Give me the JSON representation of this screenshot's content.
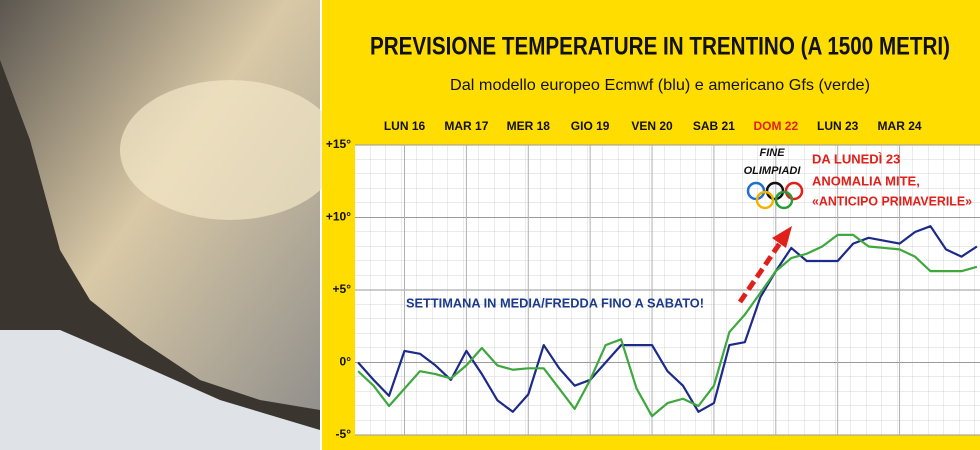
{
  "chart_data": {
    "type": "line",
    "title": "PREVISIONE TEMPERATURE IN TRENTINO (A 1500 METRI)",
    "subtitle": "Dal modello europeo Ecmwf (blu) e americano Gfs (verde)",
    "annotations": [
      "FINE",
      "OLIMPIADI",
      "DA LUNEDÌ 23",
      "ANOMALIA MITE,",
      "«ANTICIPO PRIMAVERILE»",
      "SETTIMANA IN MEDIA/FREDDA FINO A SABATO!"
    ],
    "x": [
      15.25,
      15.5,
      15.75,
      16,
      16.25,
      16.5,
      16.75,
      17,
      17.25,
      17.5,
      17.75,
      18,
      18.25,
      18.5,
      18.75,
      19,
      19.25,
      19.5,
      19.75,
      20,
      20.25,
      20.5,
      20.75,
      21,
      21.25,
      21.5,
      21.75,
      22,
      22.25,
      22.5,
      22.75,
      23,
      23.25,
      23.5,
      23.75,
      24,
      24.25,
      24.5,
      24.75,
      25,
      25.25
    ],
    "series": [
      {
        "color": "#1c2a8a",
        "values": [
          0,
          -1.2,
          -2.3,
          0.8,
          0.6,
          -0.2,
          -1.2,
          0.8,
          -0.8,
          -2.6,
          -3.4,
          -2.2,
          1.2,
          -0.4,
          -1.6,
          -1.2,
          0,
          1.2,
          1.2,
          1.2,
          -0.6,
          -1.6,
          -3.4,
          -2.8,
          1.2,
          1.4,
          4.5,
          6.3,
          7.9,
          7,
          7,
          7,
          8.2,
          8.6,
          8.4,
          8.2,
          9,
          9.4,
          7.8,
          7.3,
          8
        ]
      },
      {
        "color": "#3ea83e",
        "values": [
          -0.6,
          -1.6,
          -3,
          -1.8,
          -0.6,
          -0.8,
          -1.1,
          -0.2,
          1,
          -0.2,
          -0.5,
          -0.4,
          -0.4,
          -1.8,
          -3.2,
          -1.2,
          1.2,
          1.6,
          -1.8,
          -3.7,
          -2.8,
          -2.5,
          -3,
          -1.6,
          2.1,
          3.3,
          4.8,
          6.3,
          7.2,
          7.5,
          8,
          8.8,
          8.8,
          8,
          7.9,
          7.8,
          7.3,
          6.3,
          6.3,
          6.3,
          6.6
        ]
      }
    ],
    "xlim": [
      15.2,
      25.3
    ],
    "xticks": [
      {
        "value": 16,
        "label": "LUN 16"
      },
      {
        "value": 17,
        "label": "MAR 17"
      },
      {
        "value": 18,
        "label": "MER 18"
      },
      {
        "value": 19,
        "label": "GIO 19"
      },
      {
        "value": 20,
        "label": "VEN 20"
      },
      {
        "value": 21,
        "label": "SAB 21"
      },
      {
        "value": 22,
        "label": "DOM 22",
        "color": "#e0201a"
      },
      {
        "value": 23,
        "label": "LUN 23"
      },
      {
        "value": 24,
        "label": "MAR 24"
      }
    ],
    "ylim": [
      -5,
      15
    ],
    "yticks": [
      {
        "value": -5,
        "label": "-5°"
      },
      {
        "value": 0,
        "label": "0°"
      },
      {
        "value": 5,
        "label": "+5°"
      },
      {
        "value": 10,
        "label": "+10°"
      },
      {
        "value": 15,
        "label": "+15°"
      }
    ],
    "grid": true
  }
}
